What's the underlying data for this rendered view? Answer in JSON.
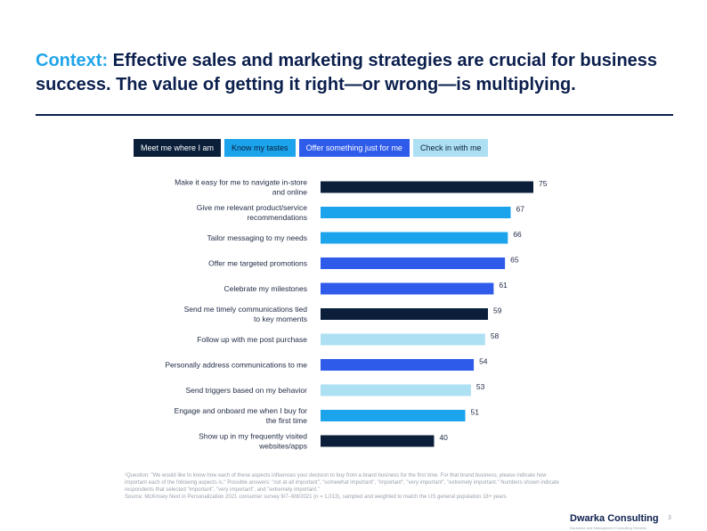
{
  "title": {
    "accent": "Context:",
    "text": "Effective sales and marketing strategies are crucial for business success. The value of getting it right—or wrong—is multiplying."
  },
  "legend": [
    {
      "label": "Meet me where I am",
      "color": "#0b1f3a",
      "text_color": "#ffffff"
    },
    {
      "label": "Know my tastes",
      "color": "#1ba3ec",
      "text_color": "#0b1f3a"
    },
    {
      "label": "Offer something just for me",
      "color": "#2e5bea",
      "text_color": "#ffffff"
    },
    {
      "label": "Check in with me",
      "color": "#aee0f3",
      "text_color": "#0b1f3a"
    }
  ],
  "chart_data": {
    "type": "bar",
    "orientation": "horizontal",
    "categories": [
      "Make it easy for me to navigate in-store\nand online",
      "Give me relevant product/service\nrecommendations",
      "Tailor messaging to my needs",
      "Offer me targeted promotions",
      "Celebrate my milestones",
      "Send me timely communications tied\nto key moments",
      "Follow up with me post purchase",
      "Personally address communications to me",
      "Send triggers based on my behavior",
      "Engage and onboard me when I buy for\nthe first time",
      "Show up in my frequently visited\nwebsites/apps"
    ],
    "values": [
      75,
      67,
      66,
      65,
      61,
      59,
      58,
      54,
      53,
      51,
      40
    ],
    "groups": [
      "Meet me where I am",
      "Know my tastes",
      "Know my tastes",
      "Offer something just for me",
      "Offer something just for me",
      "Meet me where I am",
      "Check in with me",
      "Offer something just for me",
      "Check in with me",
      "Know my tastes",
      "Meet me where I am"
    ],
    "xlim": [
      0,
      75
    ],
    "grid": false,
    "legend_position": "top"
  },
  "footnote": {
    "line1": "¹Question: \"We would like to know how each of these aspects influences your decision to buy from a brand business for the first time. For that brand business, please indicate how important each of the following aspects is.\" Possible answers: \"not at all important\", \"somewhat important\", \"important\", \"very important\", \"extremely important.\" Numbers shown indicate respondents that selected \"important\", \"very important\", and \"extremely important.\"",
    "line2": "Source: McKinsey Next in Personalization 2021 consumer survey 9/7–9/8/2021 (n = 1,013), sampled and weighted to match the US general population 18+ years"
  },
  "brand": {
    "name": "Dwarka Consulting",
    "tagline": "Insurance and Management Consulting Services"
  },
  "page_number": "3"
}
